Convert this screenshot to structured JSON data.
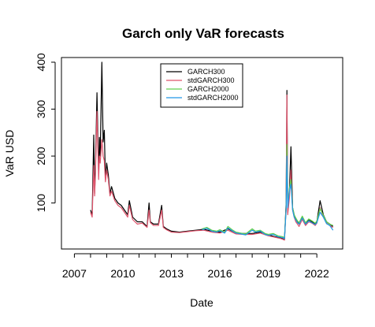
{
  "chart_data": {
    "type": "line",
    "title": "Garch only VaR forecasts",
    "xlabel": "Date",
    "ylabel": "VaR USD",
    "xlim": [
      2006.2,
      2023.6
    ],
    "ylim": [
      2,
      410
    ],
    "x_ticks": [
      2007,
      2010,
      2013,
      2016,
      2019,
      2022
    ],
    "x_tick_labels": [
      "2007",
      "2010",
      "2013",
      "2016",
      "2019",
      "2022"
    ],
    "y_ticks": [
      100,
      200,
      300,
      400
    ],
    "y_tick_labels": [
      "100",
      "200",
      "300",
      "400"
    ],
    "grid": false,
    "legend_position": "top-center",
    "series": [
      {
        "name": "GARCH300",
        "color": "#000000",
        "x": [
          2008.0,
          2008.1,
          2008.2,
          2008.25,
          2008.3,
          2008.4,
          2008.5,
          2008.55,
          2008.6,
          2008.7,
          2008.78,
          2008.85,
          2008.92,
          2009.0,
          2009.1,
          2009.2,
          2009.3,
          2009.5,
          2009.7,
          2009.9,
          2010.1,
          2010.3,
          2010.4,
          2010.6,
          2010.9,
          2011.2,
          2011.5,
          2011.62,
          2011.7,
          2011.9,
          2012.2,
          2012.4,
          2012.5,
          2012.7,
          2013.0,
          2013.5,
          2014.0,
          2014.5,
          2015.0,
          2015.5,
          2016.0,
          2016.5,
          2017.0,
          2017.5,
          2018.0,
          2018.5,
          2019.0,
          2019.4,
          2019.8,
          2020.0,
          2020.1,
          2020.15,
          2020.2,
          2020.3,
          2020.4,
          2020.5,
          2020.6,
          2020.7,
          2020.8,
          2020.9,
          2021.1,
          2021.3,
          2021.5,
          2021.7,
          2021.9,
          2022.0,
          2022.2,
          2022.4,
          2022.6,
          2022.8,
          2023.0
        ],
        "y": [
          85,
          75,
          245,
          120,
          170,
          335,
          160,
          240,
          200,
          400,
          230,
          255,
          150,
          185,
          160,
          120,
          135,
          110,
          100,
          95,
          85,
          75,
          105,
          70,
          60,
          60,
          50,
          100,
          60,
          55,
          55,
          95,
          50,
          45,
          40,
          38,
          40,
          42,
          44,
          40,
          38,
          45,
          36,
          35,
          35,
          38,
          32,
          28,
          25,
          22,
          100,
          340,
          80,
          120,
          220,
          90,
          75,
          65,
          60,
          55,
          70,
          55,
          65,
          60,
          55,
          60,
          105,
          75,
          60,
          55,
          50
        ]
      },
      {
        "name": "stdGARCH300",
        "color": "#df536b",
        "x": [
          2008.0,
          2008.1,
          2008.2,
          2008.25,
          2008.3,
          2008.4,
          2008.5,
          2008.55,
          2008.6,
          2008.7,
          2008.78,
          2008.85,
          2008.92,
          2009.0,
          2009.1,
          2009.2,
          2009.3,
          2009.5,
          2009.7,
          2009.9,
          2010.1,
          2010.3,
          2010.4,
          2010.6,
          2010.9,
          2011.2,
          2011.5,
          2011.62,
          2011.7,
          2011.9,
          2012.2,
          2012.4,
          2012.5,
          2012.7,
          2013.0,
          2013.5,
          2014.0,
          2014.5,
          2015.0,
          2015.5,
          2016.0,
          2016.5,
          2017.0,
          2017.5,
          2018.0,
          2018.5,
          2019.0,
          2019.4,
          2019.8,
          2020.0,
          2020.1,
          2020.15,
          2020.2,
          2020.3,
          2020.4,
          2020.5,
          2020.6,
          2020.7,
          2020.8,
          2020.9,
          2021.1,
          2021.3,
          2021.5,
          2021.7,
          2021.9,
          2022.0,
          2022.2,
          2022.4,
          2022.6,
          2022.8,
          2023.0
        ],
        "y": [
          80,
          70,
          180,
          115,
          160,
          295,
          150,
          200,
          185,
          235,
          200,
          190,
          145,
          170,
          150,
          115,
          125,
          105,
          95,
          90,
          80,
          70,
          95,
          65,
          55,
          57,
          48,
          85,
          58,
          52,
          52,
          85,
          48,
          43,
          38,
          37,
          39,
          41,
          42,
          38,
          36,
          42,
          34,
          33,
          33,
          36,
          30,
          27,
          24,
          21,
          90,
          330,
          75,
          110,
          170,
          85,
          70,
          60,
          55,
          50,
          65,
          52,
          60,
          57,
          52,
          57,
          90,
          70,
          57,
          52,
          48
        ]
      },
      {
        "name": "GARCH2000",
        "color": "#61d04f",
        "x": [
          2014.9,
          2015.2,
          2015.5,
          2015.8,
          2016.0,
          2016.3,
          2016.5,
          2016.8,
          2017.0,
          2017.3,
          2017.6,
          2018.0,
          2018.2,
          2018.5,
          2018.8,
          2019.0,
          2019.3,
          2019.6,
          2019.9,
          2020.0,
          2020.1,
          2020.15,
          2020.2,
          2020.3,
          2020.4,
          2020.5,
          2020.6,
          2020.7,
          2020.8,
          2020.9,
          2021.1,
          2021.3,
          2021.5,
          2021.7,
          2021.9,
          2022.0,
          2022.2,
          2022.4,
          2022.6,
          2022.8,
          2023.0
        ],
        "y": [
          45,
          48,
          42,
          40,
          43,
          38,
          50,
          42,
          38,
          36,
          34,
          45,
          40,
          42,
          35,
          33,
          35,
          30,
          28,
          26,
          90,
          225,
          95,
          130,
          150,
          90,
          75,
          68,
          62,
          58,
          72,
          58,
          66,
          62,
          57,
          62,
          88,
          74,
          60,
          55,
          52
        ]
      },
      {
        "name": "stdGARCH2000",
        "color": "#2297e6",
        "x": [
          2014.9,
          2015.2,
          2015.5,
          2015.8,
          2016.0,
          2016.3,
          2016.5,
          2016.8,
          2017.0,
          2017.3,
          2017.6,
          2018.0,
          2018.2,
          2018.5,
          2018.8,
          2019.0,
          2019.3,
          2019.6,
          2019.9,
          2020.0,
          2020.1,
          2020.15,
          2020.2,
          2020.3,
          2020.4,
          2020.5,
          2020.6,
          2020.7,
          2020.8,
          2020.9,
          2021.1,
          2021.3,
          2021.5,
          2021.7,
          2021.9,
          2022.0,
          2022.2,
          2022.4,
          2022.6,
          2022.8,
          2023.0
        ],
        "y": [
          43,
          46,
          40,
          38,
          41,
          36,
          47,
          40,
          36,
          34,
          32,
          42,
          38,
          40,
          33,
          31,
          33,
          28,
          26,
          24,
          85,
          200,
          90,
          125,
          140,
          85,
          70,
          64,
          58,
          55,
          68,
          55,
          62,
          58,
          54,
          58,
          80,
          70,
          56,
          52,
          42
        ]
      }
    ]
  }
}
